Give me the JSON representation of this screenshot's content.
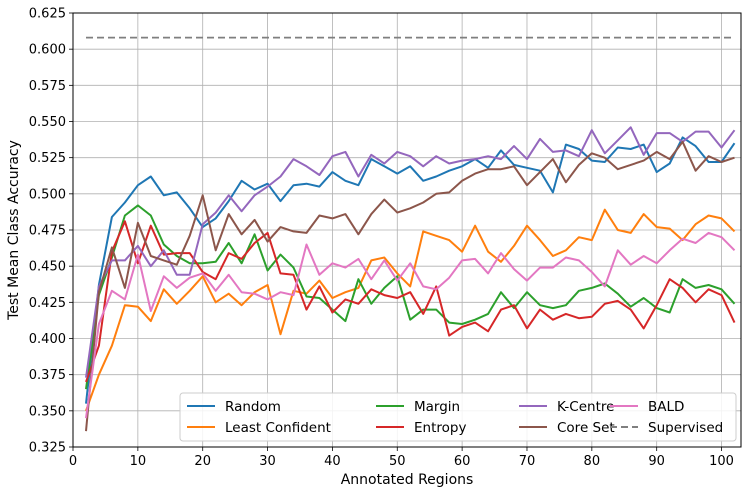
{
  "chart_data": {
    "type": "line",
    "xlabel": "Annotated Regions",
    "ylabel": "Test Mean Class Accuracy",
    "xlim": [
      0,
      103
    ],
    "ylim": [
      0.325,
      0.625
    ],
    "xticks": [
      0,
      10,
      20,
      30,
      40,
      50,
      60,
      70,
      80,
      90,
      100
    ],
    "xtick_labels": [
      "0",
      "10",
      "20",
      "30",
      "40",
      "50",
      "60",
      "70",
      "80",
      "90",
      "100"
    ],
    "yticks": [
      0.325,
      0.35,
      0.375,
      0.4,
      0.425,
      0.45,
      0.475,
      0.5,
      0.525,
      0.55,
      0.575,
      0.6,
      0.625
    ],
    "ytick_labels": [
      "0.325",
      "0.350",
      "0.375",
      "0.400",
      "0.425",
      "0.450",
      "0.475",
      "0.500",
      "0.525",
      "0.550",
      "0.575",
      "0.600",
      "0.625"
    ],
    "grid": true,
    "legend_position": "bottom-right",
    "legend_columns": 4,
    "x": [
      2,
      4,
      6,
      8,
      10,
      12,
      14,
      16,
      18,
      20,
      22,
      24,
      26,
      28,
      30,
      32,
      34,
      36,
      38,
      40,
      42,
      44,
      46,
      48,
      50,
      52,
      54,
      56,
      58,
      60,
      62,
      64,
      66,
      68,
      70,
      72,
      74,
      76,
      78,
      80,
      82,
      84,
      86,
      88,
      90,
      92,
      94,
      96,
      98,
      100,
      102
    ],
    "series": [
      {
        "name": "Random",
        "color": "#1f77b4",
        "dashed": false,
        "values": [
          0.355,
          0.437,
          0.484,
          0.494,
          0.506,
          0.512,
          0.499,
          0.501,
          0.49,
          0.477,
          0.483,
          0.495,
          0.509,
          0.503,
          0.507,
          0.495,
          0.506,
          0.507,
          0.505,
          0.515,
          0.509,
          0.506,
          0.524,
          0.519,
          0.514,
          0.519,
          0.509,
          0.512,
          0.516,
          0.519,
          0.524,
          0.518,
          0.53,
          0.52,
          0.518,
          0.516,
          0.501,
          0.534,
          0.531,
          0.523,
          0.522,
          0.532,
          0.531,
          0.534,
          0.515,
          0.521,
          0.539,
          0.533,
          0.522,
          0.522,
          0.535
        ]
      },
      {
        "name": "Least Confident",
        "color": "#ff7f0e",
        "dashed": false,
        "values": [
          0.35,
          0.375,
          0.395,
          0.423,
          0.422,
          0.412,
          0.434,
          0.424,
          0.433,
          0.443,
          0.425,
          0.431,
          0.423,
          0.432,
          0.437,
          0.403,
          0.433,
          0.431,
          0.44,
          0.428,
          0.432,
          0.435,
          0.454,
          0.456,
          0.445,
          0.436,
          0.474,
          0.471,
          0.468,
          0.46,
          0.478,
          0.46,
          0.453,
          0.464,
          0.478,
          0.468,
          0.457,
          0.461,
          0.47,
          0.468,
          0.489,
          0.475,
          0.473,
          0.486,
          0.477,
          0.476,
          0.468,
          0.479,
          0.485,
          0.483,
          0.474
        ]
      },
      {
        "name": "Margin",
        "color": "#2ca02c",
        "dashed": false,
        "values": [
          0.365,
          0.43,
          0.456,
          0.485,
          0.492,
          0.485,
          0.465,
          0.457,
          0.452,
          0.452,
          0.453,
          0.466,
          0.452,
          0.472,
          0.447,
          0.458,
          0.449,
          0.429,
          0.428,
          0.42,
          0.412,
          0.441,
          0.424,
          0.435,
          0.443,
          0.413,
          0.42,
          0.42,
          0.411,
          0.41,
          0.413,
          0.417,
          0.432,
          0.421,
          0.432,
          0.423,
          0.421,
          0.423,
          0.433,
          0.435,
          0.438,
          0.431,
          0.422,
          0.428,
          0.421,
          0.418,
          0.441,
          0.435,
          0.437,
          0.434,
          0.424
        ]
      },
      {
        "name": "Entropy",
        "color": "#d62728",
        "dashed": false,
        "values": [
          0.37,
          0.395,
          0.46,
          0.481,
          0.452,
          0.478,
          0.458,
          0.459,
          0.459,
          0.446,
          0.441,
          0.459,
          0.455,
          0.466,
          0.473,
          0.445,
          0.444,
          0.42,
          0.436,
          0.418,
          0.427,
          0.424,
          0.434,
          0.43,
          0.428,
          0.432,
          0.417,
          0.436,
          0.402,
          0.408,
          0.411,
          0.405,
          0.42,
          0.423,
          0.407,
          0.42,
          0.413,
          0.417,
          0.414,
          0.415,
          0.424,
          0.426,
          0.42,
          0.407,
          0.423,
          0.441,
          0.435,
          0.425,
          0.434,
          0.43,
          0.411
        ]
      },
      {
        "name": "K-Centre",
        "color": "#9467bd",
        "dashed": false,
        "values": [
          0.373,
          0.436,
          0.454,
          0.454,
          0.464,
          0.45,
          0.461,
          0.444,
          0.444,
          0.479,
          0.487,
          0.499,
          0.488,
          0.499,
          0.505,
          0.512,
          0.524,
          0.519,
          0.513,
          0.526,
          0.529,
          0.512,
          0.527,
          0.521,
          0.529,
          0.526,
          0.519,
          0.526,
          0.521,
          0.523,
          0.524,
          0.526,
          0.524,
          0.533,
          0.524,
          0.538,
          0.529,
          0.53,
          0.526,
          0.544,
          0.528,
          0.537,
          0.546,
          0.527,
          0.542,
          0.542,
          0.536,
          0.543,
          0.543,
          0.532,
          0.544
        ]
      },
      {
        "name": "Core Set",
        "color": "#8c564b",
        "dashed": false,
        "values": [
          0.336,
          0.432,
          0.463,
          0.435,
          0.48,
          0.457,
          0.454,
          0.451,
          0.471,
          0.499,
          0.461,
          0.486,
          0.472,
          0.482,
          0.467,
          0.477,
          0.474,
          0.473,
          0.485,
          0.483,
          0.486,
          0.472,
          0.486,
          0.496,
          0.487,
          0.49,
          0.494,
          0.5,
          0.501,
          0.509,
          0.514,
          0.517,
          0.517,
          0.519,
          0.506,
          0.515,
          0.524,
          0.508,
          0.52,
          0.528,
          0.525,
          0.517,
          0.52,
          0.523,
          0.529,
          0.524,
          0.536,
          0.516,
          0.526,
          0.522,
          0.525
        ]
      },
      {
        "name": "BALD",
        "color": "#e377c2",
        "dashed": false,
        "values": [
          0.345,
          0.41,
          0.433,
          0.427,
          0.458,
          0.419,
          0.443,
          0.435,
          0.442,
          0.445,
          0.433,
          0.444,
          0.432,
          0.431,
          0.427,
          0.432,
          0.43,
          0.465,
          0.444,
          0.452,
          0.449,
          0.455,
          0.441,
          0.454,
          0.44,
          0.452,
          0.436,
          0.434,
          0.442,
          0.454,
          0.455,
          0.445,
          0.459,
          0.448,
          0.44,
          0.449,
          0.449,
          0.456,
          0.454,
          0.446,
          0.436,
          0.461,
          0.451,
          0.457,
          0.452,
          0.461,
          0.469,
          0.466,
          0.473,
          0.47,
          0.461
        ]
      },
      {
        "name": "Supervised",
        "color": "#7f7f7f",
        "dashed": true,
        "values": [
          0.608,
          0.608,
          0.608,
          0.608,
          0.608,
          0.608,
          0.608,
          0.608,
          0.608,
          0.608,
          0.608,
          0.608,
          0.608,
          0.608,
          0.608,
          0.608,
          0.608,
          0.608,
          0.608,
          0.608,
          0.608,
          0.608,
          0.608,
          0.608,
          0.608,
          0.608,
          0.608,
          0.608,
          0.608,
          0.608,
          0.608,
          0.608,
          0.608,
          0.608,
          0.608,
          0.608,
          0.608,
          0.608,
          0.608,
          0.608,
          0.608,
          0.608,
          0.608,
          0.608,
          0.608,
          0.608,
          0.608,
          0.608,
          0.608,
          0.608,
          0.608
        ]
      }
    ]
  }
}
